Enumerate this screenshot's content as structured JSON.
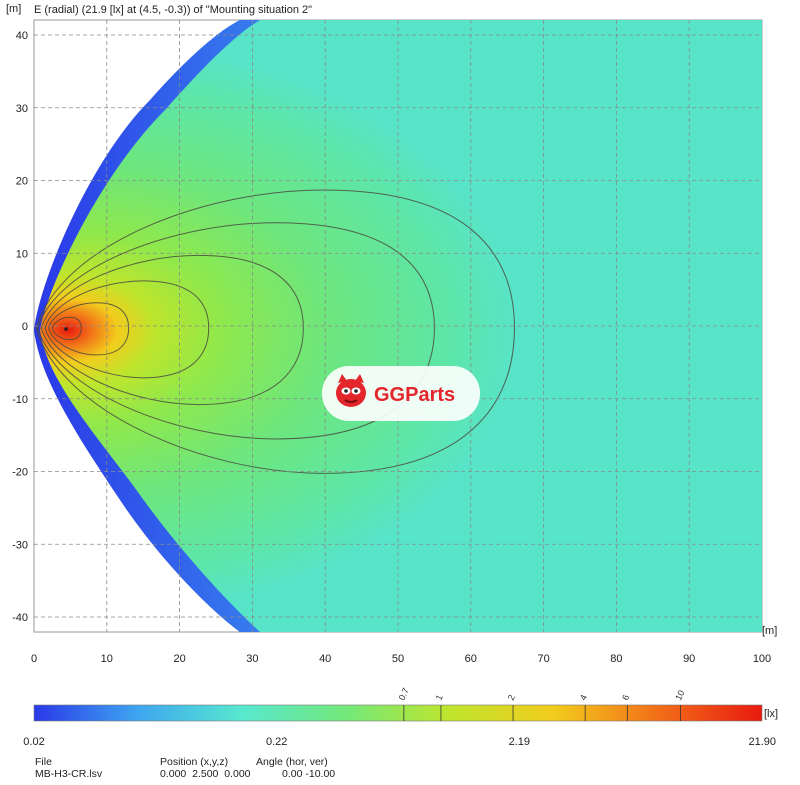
{
  "title": "E (radial) (21.9 [lx] at (4.5, -0.3)) of \"Mounting situation  2\"",
  "watermark": {
    "text": "GGParts",
    "icon": "gg-mascot-icon",
    "brand_color": "#e3262b"
  },
  "chart_data": {
    "type": "heatmap",
    "xlabel": "[m]",
    "ylabel": "[m]",
    "xlim": [
      0,
      100
    ],
    "ylim": [
      -42,
      42
    ],
    "xticks": [
      0,
      10,
      20,
      30,
      40,
      50,
      60,
      70,
      80,
      90,
      100
    ],
    "yticks": [
      -40,
      -30,
      -20,
      -10,
      0,
      10,
      20,
      30,
      40
    ],
    "grid": true,
    "peak": {
      "value": 21.9,
      "unit": "lx",
      "x": 4.5,
      "y": -0.3
    },
    "contours": [
      {
        "level": 10,
        "x_min": 2.5,
        "x_max": 6.5,
        "y_max": 1.5
      },
      {
        "level": 6,
        "x_min": 2.0,
        "x_max": 13,
        "y_max": 3.5
      },
      {
        "level": 4,
        "x_min": 1.5,
        "x_max": 24,
        "y_max": 6.5
      },
      {
        "level": 2,
        "x_min": 1.0,
        "x_max": 37,
        "y_max": 10
      },
      {
        "level": 1,
        "x_min": 0.5,
        "x_max": 55,
        "y_max": 14.5
      },
      {
        "level": 0.7,
        "x_min": 0.3,
        "x_max": 66,
        "y_max": 19
      }
    ],
    "colorbar": {
      "unit": "[lx]",
      "min_label": "0.02",
      "labels": [
        "0.02",
        "0.22",
        "2.19",
        "21.90"
      ],
      "contour_labels": [
        "0.7",
        "1",
        "2",
        "4",
        "6",
        "10"
      ],
      "contour_values": [
        0.7,
        1,
        2,
        4,
        6,
        10
      ],
      "range": [
        0.02,
        21.9
      ],
      "scale": "log",
      "colors": [
        "#2a38e8",
        "#3ea6f0",
        "#57e8cf",
        "#74e87a",
        "#bfe52c",
        "#f2cc1d",
        "#f26f18",
        "#e81a10"
      ]
    }
  },
  "info": {
    "file_label": "File",
    "file_value": "MB-H3-CR.lsv",
    "position_label": "Position (x,y,z)",
    "position_values": "0.000  2.500  0.000",
    "angle_label": "Angle (hor, ver)",
    "angle_values": "0.00 -10.00"
  }
}
